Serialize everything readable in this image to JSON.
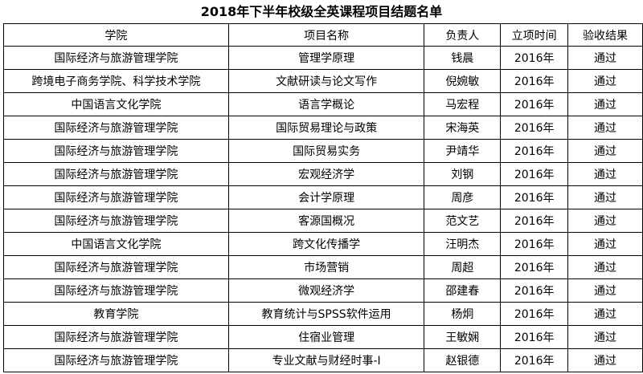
{
  "title": "2018年下半年校级全英课程项目结题名单",
  "headers": [
    "学院",
    "项目名称",
    "负责人",
    "立项时间",
    "验收结果"
  ],
  "rows": [
    [
      "国际经济与旅游管理学院",
      "管理学原理",
      "钱晨",
      "2016年",
      "通过"
    ],
    [
      "跨境电子商务学院、科学技术学院",
      "文献研读与论文写作",
      "倪婉敏",
      "2016年",
      "通过"
    ],
    [
      "中国语言文化学院",
      "语言学概论",
      "马宏程",
      "2016年",
      "通过"
    ],
    [
      "国际经济与旅游管理学院",
      "国际贸易理论与政策",
      "宋海英",
      "2016年",
      "通过"
    ],
    [
      "国际经济与旅游管理学院",
      "国际贸易实务",
      "尹靖华",
      "2016年",
      "通过"
    ],
    [
      "国际经济与旅游管理学院",
      "宏观经济学",
      "刘钢",
      "2016年",
      "通过"
    ],
    [
      "国际经济与旅游管理学院",
      "会计学原理",
      "周彦",
      "2016年",
      "通过"
    ],
    [
      "国际经济与旅游管理学院",
      "客源国概况",
      "范文艺",
      "2016年",
      "通过"
    ],
    [
      "中国语言文化学院",
      "跨文化传播学",
      "汪明杰",
      "2016年",
      "通过"
    ],
    [
      "国际经济与旅游管理学院",
      "市场营销",
      "周超",
      "2016年",
      "通过"
    ],
    [
      "国际经济与旅游管理学院",
      "微观经济学",
      "邵建春",
      "2016年",
      "通过"
    ],
    [
      "教育学院",
      "教育统计与SPSS软件运用",
      "杨炯",
      "2016年",
      "通过"
    ],
    [
      "国际经济与旅游管理学院",
      "住宿业管理",
      "王敏娴",
      "2016年",
      "通过"
    ],
    [
      "国际经济与旅游管理学院",
      "专业文献与财经时事-I",
      "赵银德",
      "2016年",
      "通过"
    ]
  ]
}
